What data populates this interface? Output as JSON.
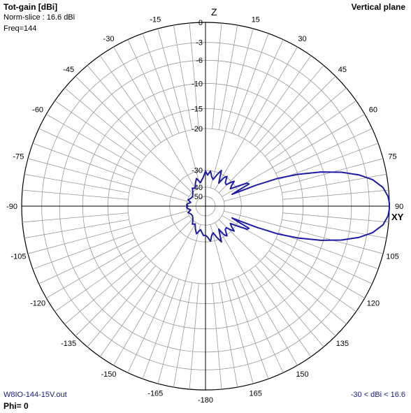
{
  "header": {
    "title": "Tot-gain [dBi]",
    "norm_slice": "Norm-slice : 16.6 dBi",
    "freq": "Freq=144",
    "plane": "Vertical plane"
  },
  "footer": {
    "file": "W8IO-144-15V.out",
    "phi": "Phi= 0",
    "range": "-30 < dBi < 16.6"
  },
  "axis_labels": {
    "z": "Z",
    "xy": "XY"
  },
  "colors": {
    "pattern": "#1c1ca8",
    "grid": "#9a9a9a",
    "axis": "#000000"
  },
  "chart_data": {
    "type": "polar-line",
    "title": "Tot-gain [dBi]",
    "angle_labels": [
      {
        "angle": 0,
        "text": "0"
      },
      {
        "angle": 15,
        "text": "15"
      },
      {
        "angle": 30,
        "text": "30"
      },
      {
        "angle": 45,
        "text": "45"
      },
      {
        "angle": 60,
        "text": "60"
      },
      {
        "angle": 75,
        "text": "75"
      },
      {
        "angle": 90,
        "text": "90"
      },
      {
        "angle": 105,
        "text": "105"
      },
      {
        "angle": 120,
        "text": "120"
      },
      {
        "angle": 135,
        "text": "135"
      },
      {
        "angle": 150,
        "text": "150"
      },
      {
        "angle": 165,
        "text": "165"
      },
      {
        "angle": 180,
        "text": "-180"
      },
      {
        "angle": -165,
        "text": "-165"
      },
      {
        "angle": -150,
        "text": "-150"
      },
      {
        "angle": -135,
        "text": "-135"
      },
      {
        "angle": -120,
        "text": "-120"
      },
      {
        "angle": -105,
        "text": "-105"
      },
      {
        "angle": -90,
        "text": "-90"
      },
      {
        "angle": -75,
        "text": "-75"
      },
      {
        "angle": -60,
        "text": "-60"
      },
      {
        "angle": -45,
        "text": "-45"
      },
      {
        "angle": -30,
        "text": "-30"
      },
      {
        "angle": -15,
        "text": "-15"
      }
    ],
    "radial_ticks": [
      {
        "db": 0,
        "text": "0"
      },
      {
        "db": -3,
        "text": "-3"
      },
      {
        "db": -6,
        "text": "-6"
      },
      {
        "db": -10,
        "text": "-10"
      },
      {
        "db": -15,
        "text": "-15"
      },
      {
        "db": -20,
        "text": "-20"
      },
      {
        "db": -30,
        "text": "-30"
      },
      {
        "db": -40,
        "text": "-40"
      },
      {
        "db": -50,
        "text": "-50"
      }
    ],
    "ring_radius_fraction": {
      "0": 1.0,
      "-3": 0.891,
      "-6": 0.794,
      "-10": 0.668,
      "-15": 0.531,
      "-20": 0.422,
      "-30": 0.195,
      "-40": 0.103,
      "-50": 0.053
    },
    "unit": "dBi",
    "max_gain_dbi": 16.6,
    "dbi_range": [
      -30,
      16.6
    ],
    "series": [
      {
        "points": [
          [
            0,
            -30.5
          ],
          [
            4,
            -32.8
          ],
          [
            8,
            -30.2
          ],
          [
            12,
            -33.5
          ],
          [
            16,
            -34.8
          ],
          [
            20,
            -31.5
          ],
          [
            24,
            -29.2
          ],
          [
            27,
            -32.5
          ],
          [
            30,
            -35.5
          ],
          [
            33,
            -31.0
          ],
          [
            36,
            -29.8
          ],
          [
            40,
            -33.0
          ],
          [
            44,
            -33.5
          ],
          [
            47,
            -30.6
          ],
          [
            49,
            -29.5
          ],
          [
            52,
            -31.8
          ],
          [
            55,
            -33.3
          ],
          [
            58,
            -29.6
          ],
          [
            61,
            -27.2
          ],
          [
            63,
            -26.9
          ],
          [
            64.5,
            -30.0
          ],
          [
            66,
            -34.0
          ],
          [
            67.5,
            -25.5
          ],
          [
            69,
            -20.0
          ],
          [
            71,
            -15.0
          ],
          [
            73.5,
            -10.5
          ],
          [
            76,
            -7.0
          ],
          [
            78.5,
            -4.2
          ],
          [
            81,
            -2.2
          ],
          [
            84,
            -0.8
          ],
          [
            87,
            -0.15
          ],
          [
            89,
            0.0
          ],
          [
            91,
            0.0
          ],
          [
            93,
            -0.15
          ],
          [
            96,
            -0.8
          ],
          [
            99,
            -2.2
          ],
          [
            101.5,
            -4.2
          ],
          [
            104,
            -7.0
          ],
          [
            106.5,
            -10.5
          ],
          [
            109,
            -15.0
          ],
          [
            111,
            -20.0
          ],
          [
            112.5,
            -25.5
          ],
          [
            114,
            -34.0
          ],
          [
            115.5,
            -30.0
          ],
          [
            117,
            -26.9
          ],
          [
            119,
            -27.2
          ],
          [
            122,
            -29.6
          ],
          [
            125,
            -33.3
          ],
          [
            128,
            -31.8
          ],
          [
            131,
            -29.5
          ],
          [
            133,
            -30.6
          ],
          [
            136,
            -33.5
          ],
          [
            140,
            -33.0
          ],
          [
            144,
            -29.8
          ],
          [
            147,
            -31.0
          ],
          [
            150,
            -35.5
          ],
          [
            153,
            -32.5
          ],
          [
            156,
            -29.2
          ],
          [
            160,
            -31.5
          ],
          [
            164,
            -34.8
          ],
          [
            168,
            -33.5
          ],
          [
            172,
            -30.2
          ],
          [
            176,
            -32.8
          ],
          [
            180,
            -34.0
          ],
          [
            -176,
            -33.8
          ],
          [
            -172,
            -35.6
          ],
          [
            -168,
            -37.0
          ],
          [
            -162,
            -34.0
          ],
          [
            -156,
            -36.5
          ],
          [
            -150,
            -39.0
          ],
          [
            -144,
            -38.0
          ],
          [
            -138,
            -40.0
          ],
          [
            -132,
            -42.0
          ],
          [
            -126,
            -43.0
          ],
          [
            -118,
            -42.5
          ],
          [
            -110,
            -40.5
          ],
          [
            -104,
            -44.0
          ],
          [
            -98,
            -41.0
          ],
          [
            -94,
            -40.0
          ],
          [
            -90,
            -41.5
          ],
          [
            -86,
            -40.0
          ],
          [
            -82,
            -41.0
          ],
          [
            -76,
            -44.0
          ],
          [
            -70,
            -40.5
          ],
          [
            -62,
            -42.5
          ],
          [
            -54,
            -43.0
          ],
          [
            -48,
            -42.0
          ],
          [
            -42,
            -40.0
          ],
          [
            -36,
            -38.0
          ],
          [
            -30,
            -39.0
          ],
          [
            -24,
            -36.5
          ],
          [
            -18,
            -34.0
          ],
          [
            -12,
            -37.0
          ],
          [
            -8,
            -35.6
          ],
          [
            -4,
            -33.8
          ]
        ]
      }
    ]
  }
}
